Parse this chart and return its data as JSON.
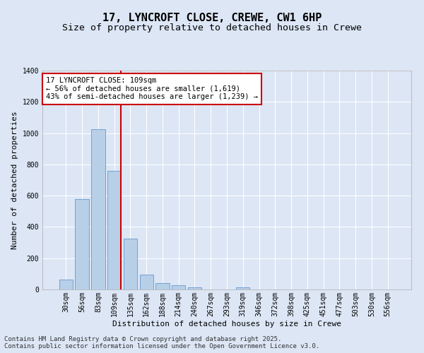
{
  "title": "17, LYNCROFT CLOSE, CREWE, CW1 6HP",
  "subtitle": "Size of property relative to detached houses in Crewe",
  "xlabel": "Distribution of detached houses by size in Crewe",
  "ylabel": "Number of detached properties",
  "bar_color": "#b8cfe8",
  "bar_edge_color": "#6699cc",
  "background_color": "#dce6f5",
  "fig_background": "#dce6f5",
  "grid_color": "#ffffff",
  "categories": [
    "30sqm",
    "56sqm",
    "83sqm",
    "109sqm",
    "135sqm",
    "162sqm",
    "188sqm",
    "214sqm",
    "240sqm",
    "267sqm",
    "293sqm",
    "319sqm",
    "346sqm",
    "372sqm",
    "398sqm",
    "425sqm",
    "451sqm",
    "477sqm",
    "503sqm",
    "530sqm",
    "556sqm"
  ],
  "values": [
    65,
    580,
    1025,
    760,
    325,
    95,
    40,
    25,
    15,
    0,
    0,
    15,
    0,
    0,
    0,
    0,
    0,
    0,
    0,
    0,
    0
  ],
  "red_line_index": 3,
  "annotation_line1": "17 LYNCROFT CLOSE: 109sqm",
  "annotation_line2": "← 56% of detached houses are smaller (1,619)",
  "annotation_line3": "43% of semi-detached houses are larger (1,239) →",
  "annotation_box_color": "#ffffff",
  "annotation_border_color": "#cc0000",
  "red_line_color": "#cc0000",
  "ylim": [
    0,
    1400
  ],
  "yticks": [
    0,
    200,
    400,
    600,
    800,
    1000,
    1200,
    1400
  ],
  "footer_line1": "Contains HM Land Registry data © Crown copyright and database right 2025.",
  "footer_line2": "Contains public sector information licensed under the Open Government Licence v3.0.",
  "title_fontsize": 11,
  "subtitle_fontsize": 9.5,
  "axis_label_fontsize": 8,
  "tick_fontsize": 7,
  "annotation_fontsize": 7.5,
  "footer_fontsize": 6.5
}
